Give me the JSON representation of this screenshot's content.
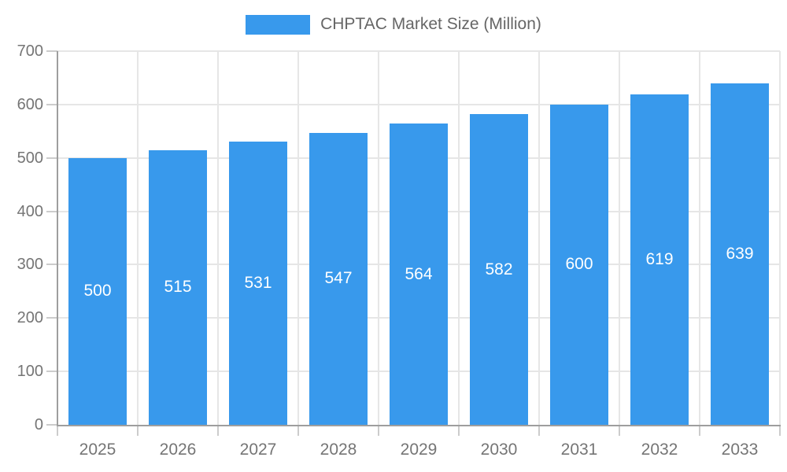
{
  "legend": {
    "label": "CHPTAC Market Size (Million)"
  },
  "chart_data": {
    "type": "bar",
    "title": "CHPTAC Market Size (Million)",
    "categories": [
      "2025",
      "2026",
      "2027",
      "2028",
      "2029",
      "2030",
      "2031",
      "2032",
      "2033"
    ],
    "values": [
      500,
      515,
      531,
      547,
      564,
      582,
      600,
      619,
      639
    ],
    "xlabel": "",
    "ylabel": "",
    "ylim": [
      0,
      700
    ],
    "ytick_interval": 100,
    "yticks": [
      0,
      100,
      200,
      300,
      400,
      500,
      600,
      700
    ],
    "grid": true,
    "legend_position": "top-center",
    "value_label_position": "inside-middle",
    "colors": {
      "bar": "#3899EC",
      "value_label": "#FFFFFF",
      "axis_text": "#757575",
      "legend_text": "#666666",
      "grid_line": "#E6E6E6",
      "tick_line": "#CCCCCC",
      "axis_line": "#9E9E9E",
      "background": "#FFFFFF"
    }
  }
}
